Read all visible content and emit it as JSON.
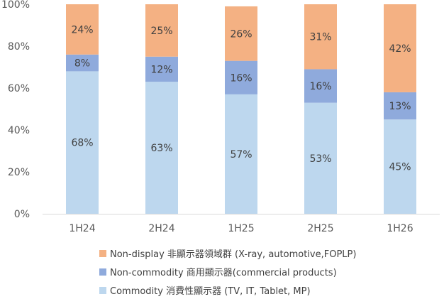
{
  "chart_data": {
    "type": "bar",
    "stacked": true,
    "percent": true,
    "categories": [
      "1H24",
      "2H24",
      "1H25",
      "2H25",
      "1H26"
    ],
    "series": [
      {
        "name": "Commodity 消費性顯示器 (TV, IT, Tablet, MP)",
        "values": [
          68,
          63,
          57,
          53,
          45
        ],
        "labels": [
          "68%",
          "63%",
          "57%",
          "53%",
          "45%"
        ],
        "color": "#BDD7EE"
      },
      {
        "name": "Non-commodity 商用顯示器(commercial products)",
        "values": [
          8,
          12,
          16,
          16,
          13
        ],
        "labels": [
          "8%",
          "12%",
          "16%",
          "16%",
          "13%"
        ],
        "color": "#8FAADC"
      },
      {
        "name": "Non-display 非顯示器領域群 (X-ray, automotive,FOPLP)",
        "values": [
          24,
          25,
          26,
          31,
          42
        ],
        "labels": [
          "24%",
          "25%",
          "26%",
          "31%",
          "42%"
        ],
        "color": "#F4B183"
      }
    ],
    "ylim": [
      0,
      100
    ],
    "yticks": [
      "0%",
      "20%",
      "40%",
      "60%",
      "80%",
      "100%"
    ],
    "legend_position": "bottom",
    "legend_order": [
      2,
      1,
      0
    ],
    "grid": false,
    "axis_color": "#D9D9D9"
  }
}
